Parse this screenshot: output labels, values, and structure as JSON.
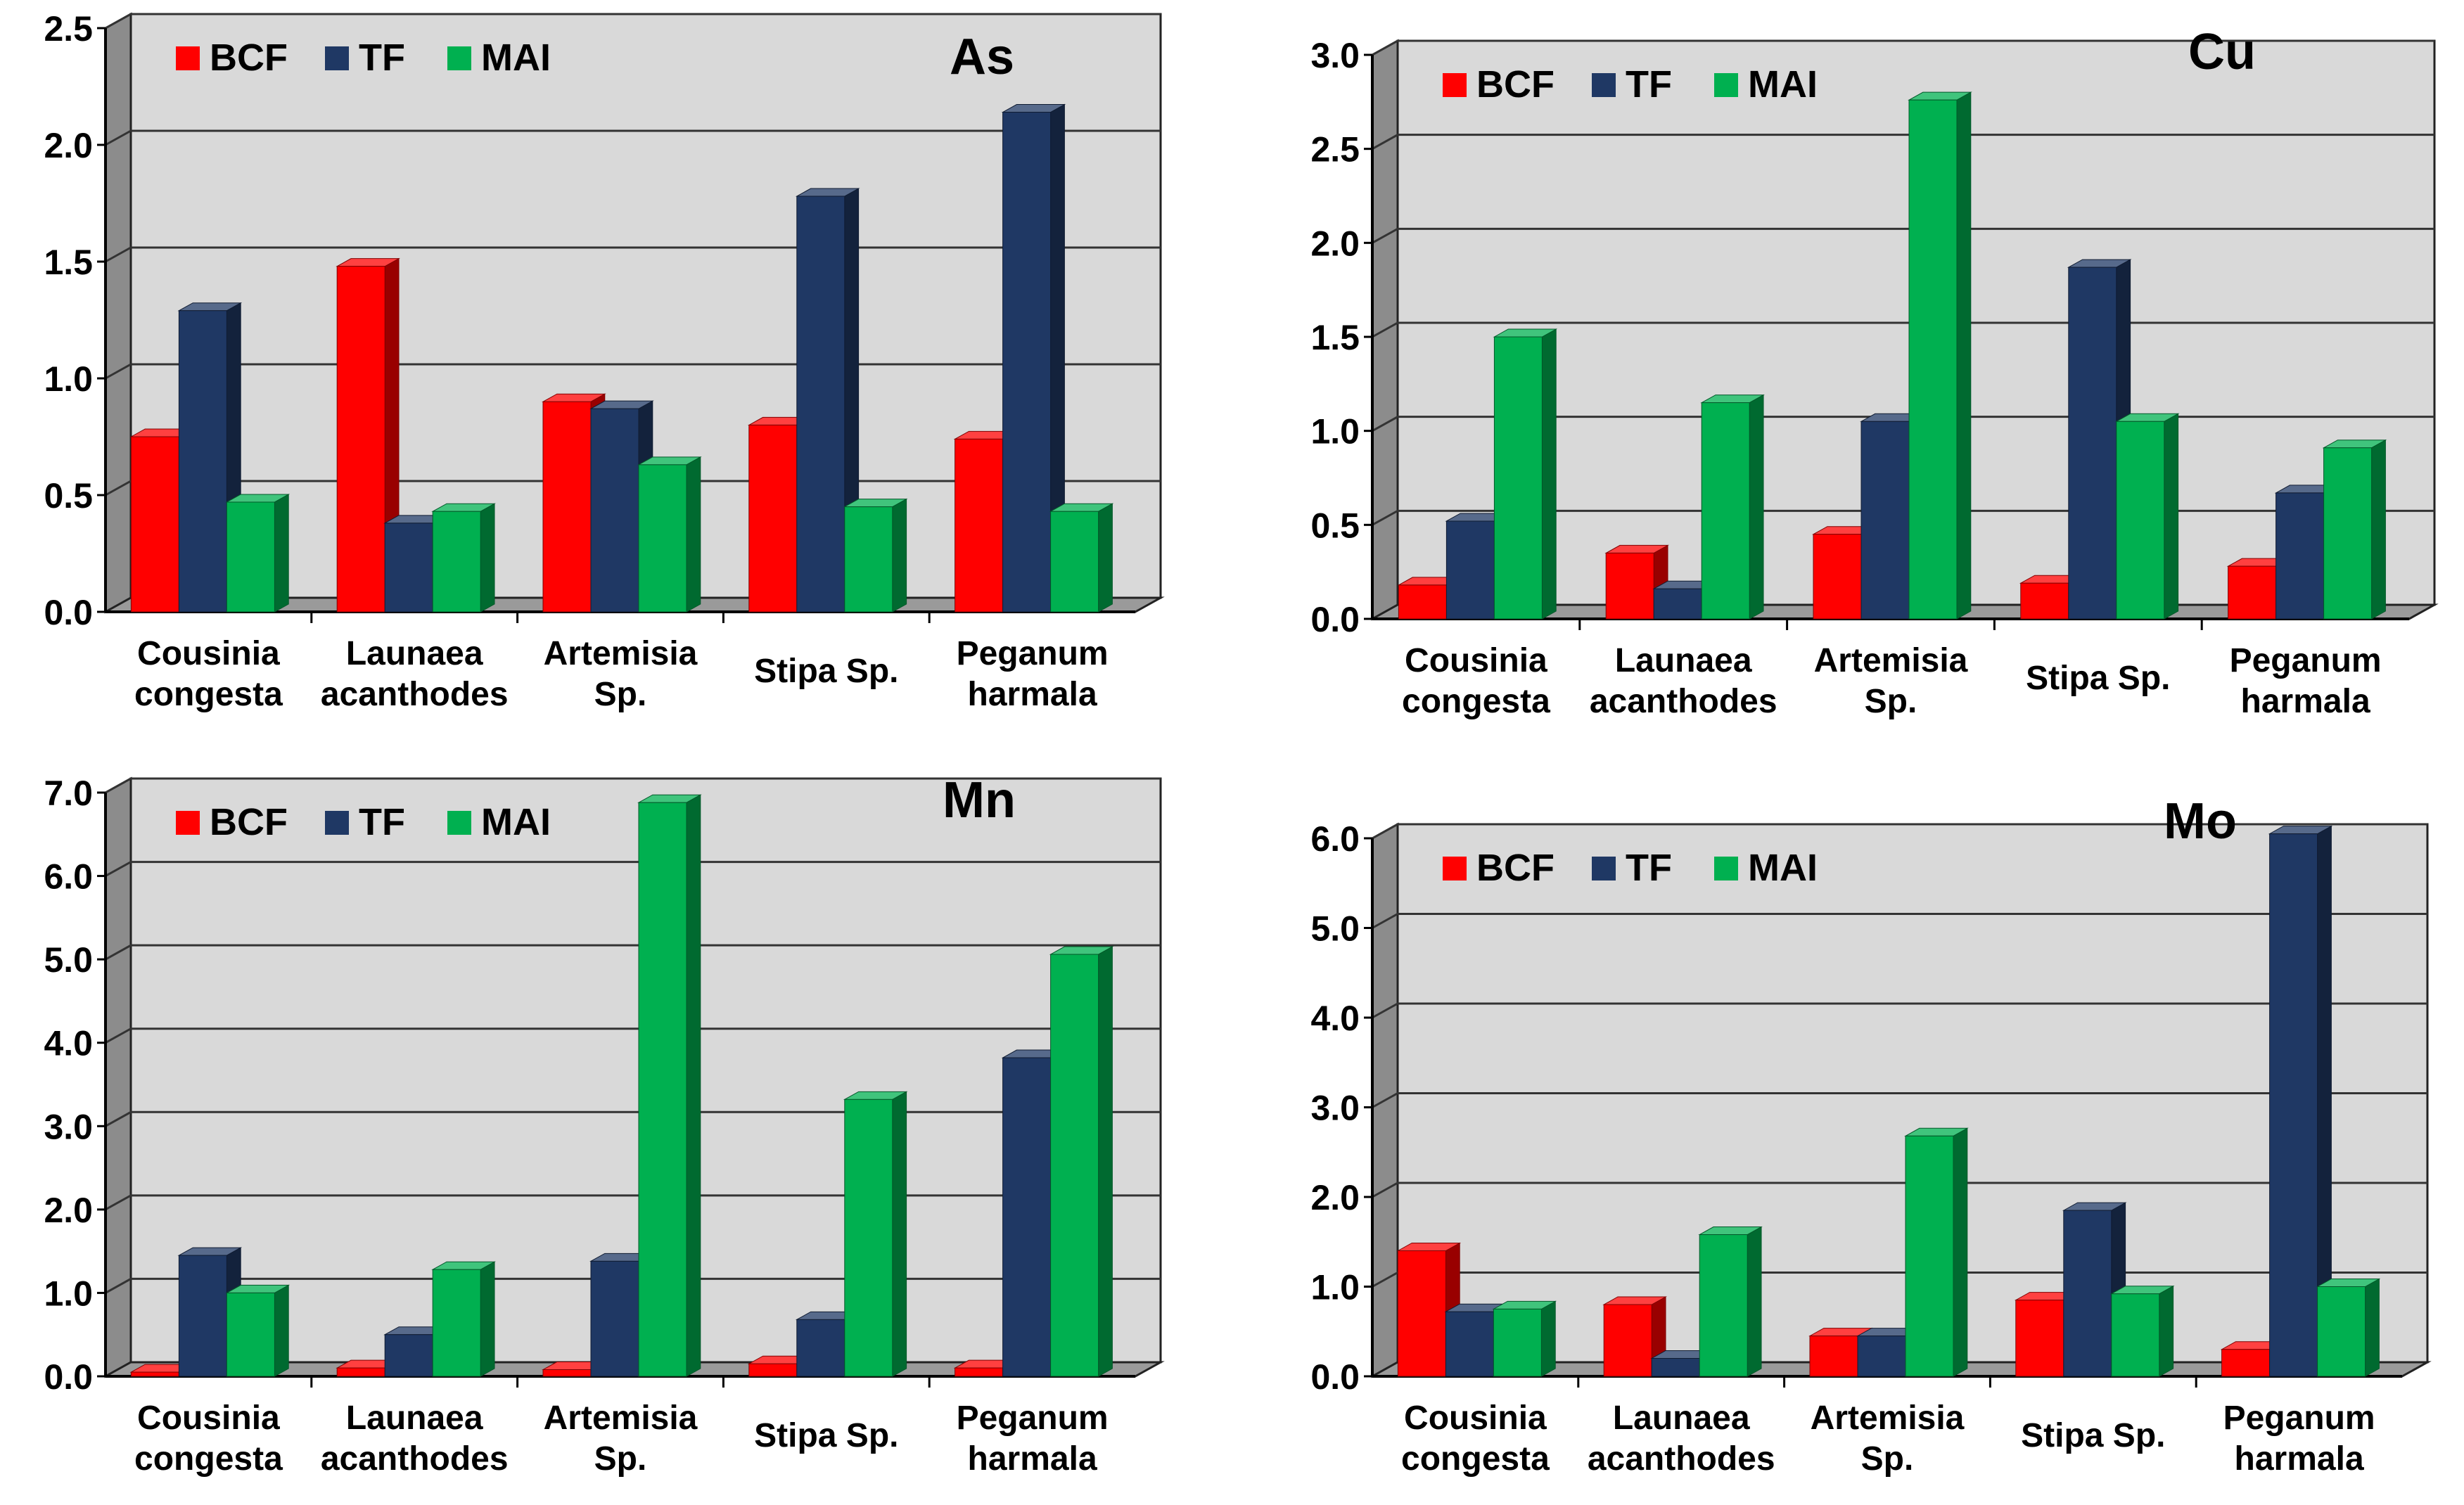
{
  "chart_data": [
    {
      "type": "bar",
      "title": "As",
      "categories": [
        [
          "Cousinia",
          "congesta"
        ],
        [
          "Launaea",
          "acanthodes"
        ],
        [
          "Artemisia",
          "Sp."
        ],
        [
          "Stipa Sp."
        ],
        [
          "Peganum",
          "harmala"
        ]
      ],
      "ylim": [
        0,
        2.5
      ],
      "yticks": [
        "0.0",
        "0.5",
        "1.0",
        "1.5",
        "2.0",
        "2.5"
      ],
      "series": [
        {
          "name": "BCF",
          "color": "#ff0000",
          "values": [
            0.75,
            1.48,
            0.9,
            0.8,
            0.74
          ]
        },
        {
          "name": "TF",
          "color": "#1f3864",
          "values": [
            1.29,
            0.38,
            0.87,
            1.78,
            2.14
          ]
        },
        {
          "name": "MAI",
          "color": "#00b050",
          "values": [
            0.47,
            0.43,
            0.63,
            0.45,
            0.43
          ]
        }
      ]
    },
    {
      "type": "bar",
      "title": "Cu",
      "categories": [
        [
          "Cousinia",
          "congesta"
        ],
        [
          "Launaea",
          "acanthodes"
        ],
        [
          "Artemisia",
          "Sp."
        ],
        [
          "Stipa Sp."
        ],
        [
          "Peganum",
          "harmala"
        ]
      ],
      "ylim": [
        0,
        3.0
      ],
      "yticks": [
        "0.0",
        "0.5",
        "1.0",
        "1.5",
        "2.0",
        "2.5",
        "3.0"
      ],
      "series": [
        {
          "name": "BCF",
          "color": "#ff0000",
          "values": [
            0.18,
            0.35,
            0.45,
            0.19,
            0.28
          ]
        },
        {
          "name": "TF",
          "color": "#1f3864",
          "values": [
            0.52,
            0.16,
            1.05,
            1.87,
            0.67
          ]
        },
        {
          "name": "MAI",
          "color": "#00b050",
          "values": [
            1.5,
            1.15,
            2.76,
            1.05,
            0.91
          ]
        }
      ]
    },
    {
      "type": "bar",
      "title": "Mn",
      "categories": [
        [
          "Cousinia",
          "congesta"
        ],
        [
          "Launaea",
          "acanthodes"
        ],
        [
          "Artemisia",
          "Sp."
        ],
        [
          "Stipa Sp."
        ],
        [
          "Peganum",
          "harmala"
        ]
      ],
      "ylim": [
        0,
        7.0
      ],
      "yticks": [
        "0.0",
        "1.0",
        "2.0",
        "3.0",
        "4.0",
        "5.0",
        "6.0",
        "7.0"
      ],
      "series": [
        {
          "name": "BCF",
          "color": "#ff0000",
          "values": [
            0.05,
            0.1,
            0.08,
            0.15,
            0.1
          ]
        },
        {
          "name": "TF",
          "color": "#1f3864",
          "values": [
            1.45,
            0.5,
            1.38,
            0.68,
            3.82
          ]
        },
        {
          "name": "MAI",
          "color": "#00b050",
          "values": [
            1.0,
            1.28,
            6.88,
            3.32,
            5.06
          ]
        }
      ]
    },
    {
      "type": "bar",
      "title": "Mo",
      "categories": [
        [
          "Cousinia",
          "congesta"
        ],
        [
          "Launaea",
          "acanthodes"
        ],
        [
          "Artemisia",
          "Sp."
        ],
        [
          "Stipa Sp."
        ],
        [
          "Peganum",
          "harmala"
        ]
      ],
      "ylim": [
        0,
        6.0
      ],
      "yticks": [
        "0.0",
        "1.0",
        "2.0",
        "3.0",
        "4.0",
        "5.0",
        "6.0"
      ],
      "series": [
        {
          "name": "BCF",
          "color": "#ff0000",
          "values": [
            1.4,
            0.8,
            0.45,
            0.85,
            0.3
          ]
        },
        {
          "name": "TF",
          "color": "#1f3864",
          "values": [
            0.72,
            0.2,
            0.45,
            1.85,
            6.05
          ]
        },
        {
          "name": "MAI",
          "color": "#00b050",
          "values": [
            0.75,
            1.58,
            2.68,
            0.92,
            1.0
          ]
        }
      ]
    }
  ]
}
